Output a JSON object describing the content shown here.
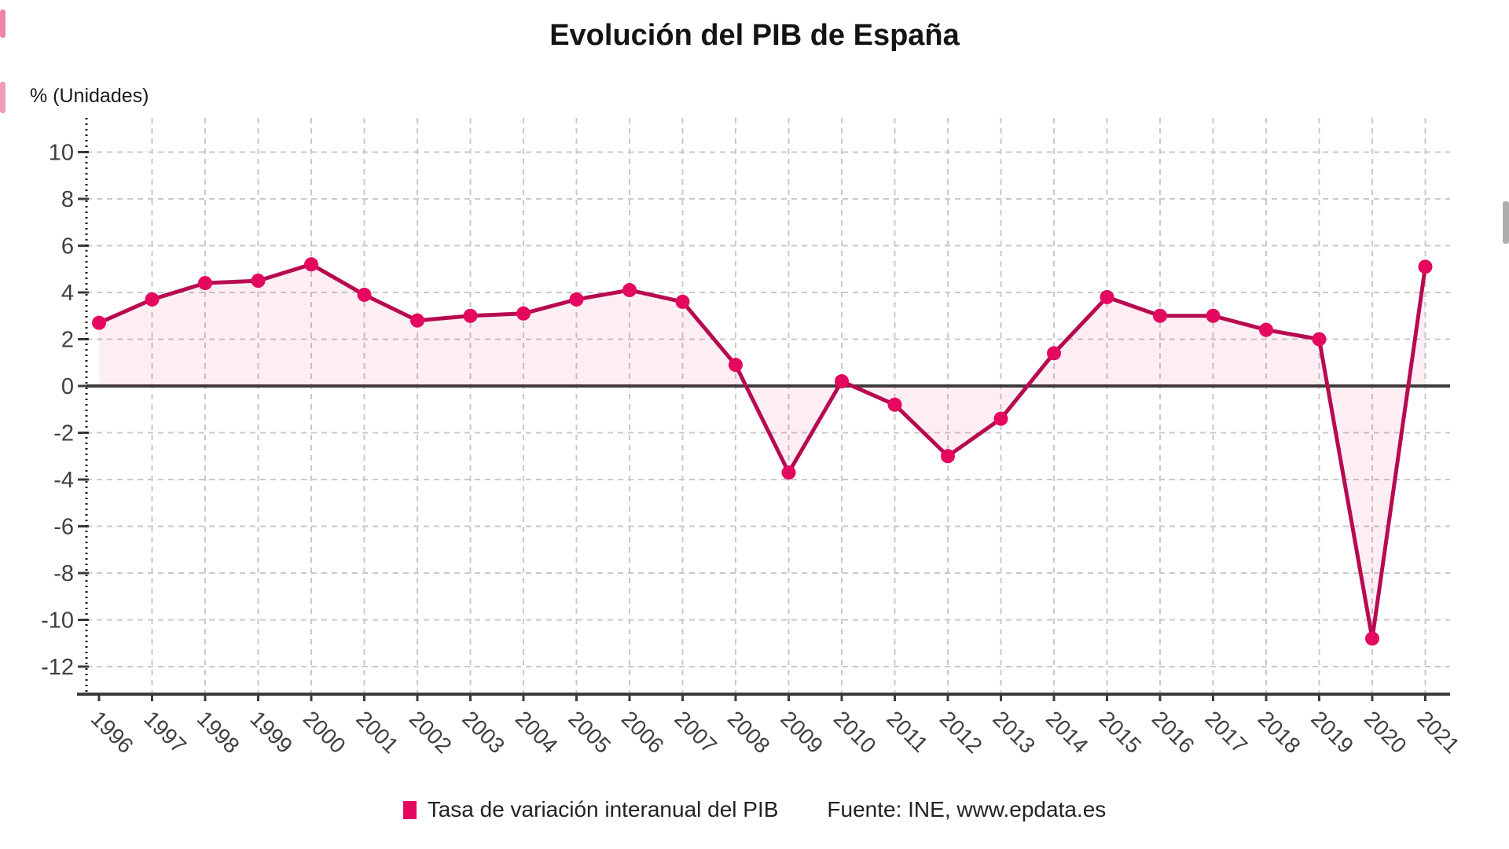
{
  "chart_data": {
    "type": "line",
    "title": "Evolución del PIB de España",
    "ylabel": "% (Unidades)",
    "xlabel": "",
    "categories": [
      "1996",
      "1997",
      "1998",
      "1999",
      "2000",
      "2001",
      "2002",
      "2003",
      "2004",
      "2005",
      "2006",
      "2007",
      "2008",
      "2009",
      "2010",
      "2011",
      "2012",
      "2013",
      "2014",
      "2015",
      "2016",
      "2017",
      "2018",
      "2019",
      "2020",
      "2021"
    ],
    "series": [
      {
        "name": "Tasa de variación interanual del PIB",
        "values": [
          2.7,
          3.7,
          4.4,
          4.5,
          5.2,
          3.9,
          2.8,
          3.0,
          3.1,
          3.7,
          4.1,
          3.6,
          0.9,
          -3.7,
          0.2,
          -0.8,
          -3.0,
          -1.4,
          1.4,
          3.8,
          3.0,
          3.0,
          2.4,
          2.0,
          -10.8,
          5.1
        ]
      }
    ],
    "yticks": [
      10,
      8,
      6,
      4,
      2,
      0,
      -2,
      -4,
      -6,
      -8,
      -10,
      -12
    ],
    "ylim": [
      -13.2,
      11.4
    ],
    "grid": true,
    "legend_position": "bottom",
    "source": "Fuente: INE, www.epdata.es"
  },
  "colors": {
    "line": "#b70b50",
    "point": "#e5085f",
    "area_fill": "rgba(222,16,98,0.07)",
    "grid": "#c9c9c9",
    "axis": "#3b3b3b",
    "tick_text": "#3f3f3f",
    "title_text": "#141414"
  }
}
